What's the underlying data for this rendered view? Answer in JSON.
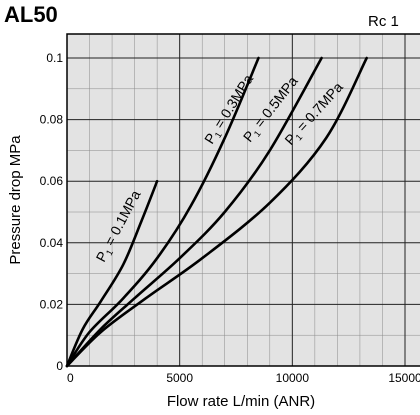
{
  "title": "AL50",
  "port": "Rc 1",
  "chart_data": {
    "type": "line",
    "title": "AL50",
    "xlabel": "Flow rate  L/min (ANR)",
    "ylabel": "Pressure drop  MPa",
    "xlim": [
      0,
      15000
    ],
    "ylim": [
      0,
      0.1
    ],
    "xticks": [
      {
        "value": 0,
        "label": "0"
      },
      {
        "value": 5000,
        "label": "5000"
      },
      {
        "value": 10000,
        "label": "10000"
      },
      {
        "value": 15000,
        "label": "15000"
      }
    ],
    "yticks": [
      {
        "value": 0,
        "label": "0"
      },
      {
        "value": 0.02,
        "label": "0.02"
      },
      {
        "value": 0.04,
        "label": "0.04"
      },
      {
        "value": 0.06,
        "label": "0.06"
      },
      {
        "value": 0.08,
        "label": "0.08"
      },
      {
        "value": 0.1,
        "label": "0.1"
      }
    ],
    "grid": true,
    "series": [
      {
        "name": "P1 = 0.1MPa",
        "label_main": "P",
        "label_sub": "1",
        "label_rest": " = 0.1MPa",
        "x": [
          0,
          700,
          1500,
          2500,
          3300,
          4000
        ],
        "y": [
          0,
          0.012,
          0.021,
          0.033,
          0.047,
          0.06
        ]
      },
      {
        "name": "P1 = 0.3MPa",
        "label_main": "P",
        "label_sub": "1",
        "label_rest": " = 0.3MPa",
        "x": [
          0,
          1000,
          2500,
          4000,
          5500,
          7000,
          8500
        ],
        "y": [
          0,
          0.011,
          0.022,
          0.035,
          0.052,
          0.074,
          0.1
        ]
      },
      {
        "name": "P1 = 0.5MPa",
        "label_main": "P",
        "label_sub": "1",
        "label_rest": " = 0.5MPa",
        "x": [
          0,
          1500,
          3000,
          5000,
          7000,
          9000,
          11300
        ],
        "y": [
          0,
          0.012,
          0.022,
          0.035,
          0.05,
          0.07,
          0.1
        ]
      },
      {
        "name": "P1 = 0.7MPa",
        "label_main": "P",
        "label_sub": "1",
        "label_rest": " = 0.7MPa",
        "x": [
          0,
          1500,
          3500,
          6000,
          9000,
          11500,
          13300
        ],
        "y": [
          0,
          0.011,
          0.022,
          0.035,
          0.053,
          0.074,
          0.1
        ]
      }
    ]
  }
}
